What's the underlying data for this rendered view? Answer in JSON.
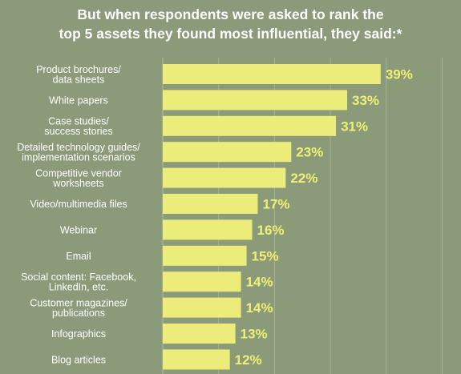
{
  "title_lines": [
    "But when respondents were asked to rank the",
    "top 5 assets they found most influential, they said:*"
  ],
  "colors": {
    "background": "#8b9b7a",
    "bar": "#ecec7a",
    "value_text": "#f0f073",
    "grid": "#a6b394"
  },
  "chart_data": {
    "type": "bar",
    "orientation": "horizontal",
    "title": "But when respondents were asked to rank the top 5 assets they found most influential, they said:*",
    "categories": [
      [
        "Product brochures/",
        "data sheets"
      ],
      [
        "White papers"
      ],
      [
        "Case studies/",
        "success stories"
      ],
      [
        "Detailed technology guides/",
        "implementation scenarios"
      ],
      [
        "Competitive vendor",
        "worksheets"
      ],
      [
        "Video/multimedia files"
      ],
      [
        "Webinar"
      ],
      [
        "Email"
      ],
      [
        "Social content: Facebook,",
        "LinkedIn, etc."
      ],
      [
        "Customer magazines/",
        "publications"
      ],
      [
        "Infographics"
      ],
      [
        "Blog articles"
      ]
    ],
    "values": [
      39,
      33,
      31,
      23,
      22,
      17,
      16,
      15,
      14,
      14,
      13,
      12
    ],
    "value_labels": [
      "39%",
      "33%",
      "31%",
      "23%",
      "22%",
      "17%",
      "16%",
      "15%",
      "14%",
      "14%",
      "13%",
      "12%"
    ],
    "xlim": [
      0,
      50
    ],
    "grid": true,
    "legend": "none"
  }
}
